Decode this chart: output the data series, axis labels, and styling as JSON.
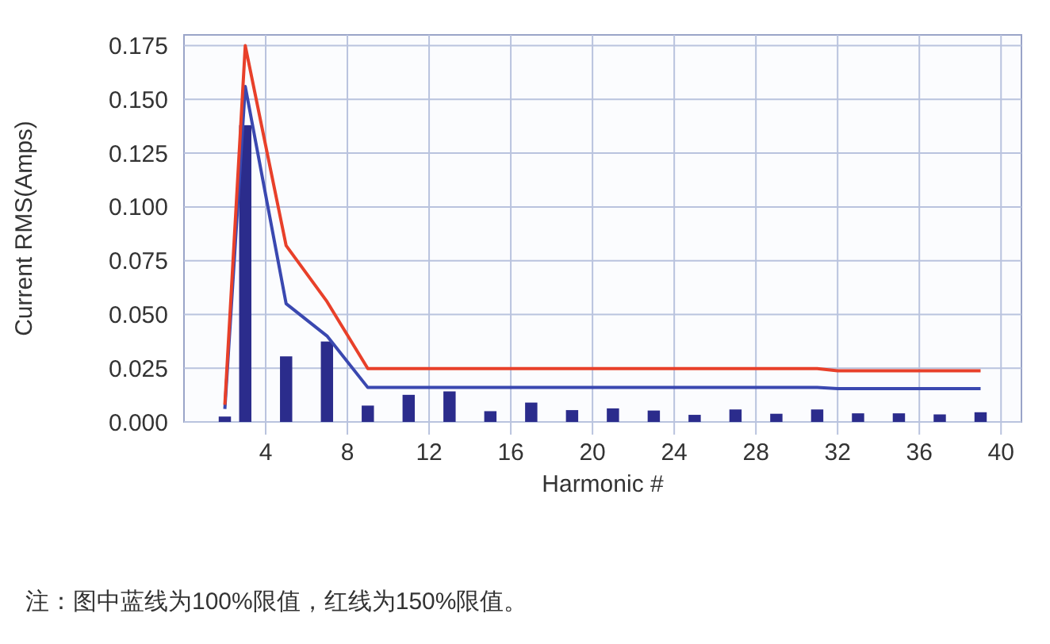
{
  "chart_data": {
    "type": "bar",
    "xlabel": "Harmonic #",
    "ylabel": "Current RMS(Amps)",
    "x": [
      2,
      3,
      5,
      7,
      9,
      11,
      13,
      15,
      17,
      19,
      21,
      23,
      25,
      27,
      29,
      31,
      33,
      35,
      37,
      39
    ],
    "series": [
      {
        "color": "#2b2c8c",
        "values": [
          0.0025,
          0.138,
          0.0305,
          0.0374,
          0.0076,
          0.0126,
          0.0142,
          0.005,
          0.009,
          0.0055,
          0.0063,
          0.0053,
          0.0033,
          0.0058,
          0.0038,
          0.0058,
          0.004,
          0.004,
          0.0035,
          0.0045
        ]
      },
      {
        "type": "line",
        "color": "#3a48b0",
        "x": [
          2,
          3,
          5,
          7,
          9,
          31,
          32,
          39
        ],
        "values": [
          0.006,
          0.156,
          0.055,
          0.04,
          0.016,
          0.016,
          0.0155,
          0.0155
        ]
      },
      {
        "type": "line",
        "color": "#e8402a",
        "x": [
          2,
          3,
          5,
          7,
          9,
          31,
          32,
          39
        ],
        "values": [
          0.008,
          0.175,
          0.082,
          0.056,
          0.0248,
          0.0248,
          0.0238,
          0.0238
        ]
      }
    ],
    "xlim": [
      0,
      41
    ],
    "xticks": [
      4,
      8,
      12,
      16,
      20,
      24,
      28,
      32,
      36,
      40
    ],
    "ylim": [
      0,
      0.18
    ],
    "yticks": [
      {
        "value": 0,
        "label": "0.000"
      },
      {
        "value": 0.025,
        "label": "0.025"
      },
      {
        "value": 0.05,
        "label": "0.050"
      },
      {
        "value": 0.075,
        "label": "0.075"
      },
      {
        "value": 0.1,
        "label": "0.100"
      },
      {
        "value": 0.125,
        "label": "0.125"
      },
      {
        "value": 0.15,
        "label": "0.150"
      },
      {
        "value": 0.175,
        "label": "0.175"
      }
    ],
    "grid": true,
    "marker": "none",
    "line_style": "solid",
    "annotations": [
      "注：图中蓝线为100%限值，红线为150%限值。"
    ]
  }
}
